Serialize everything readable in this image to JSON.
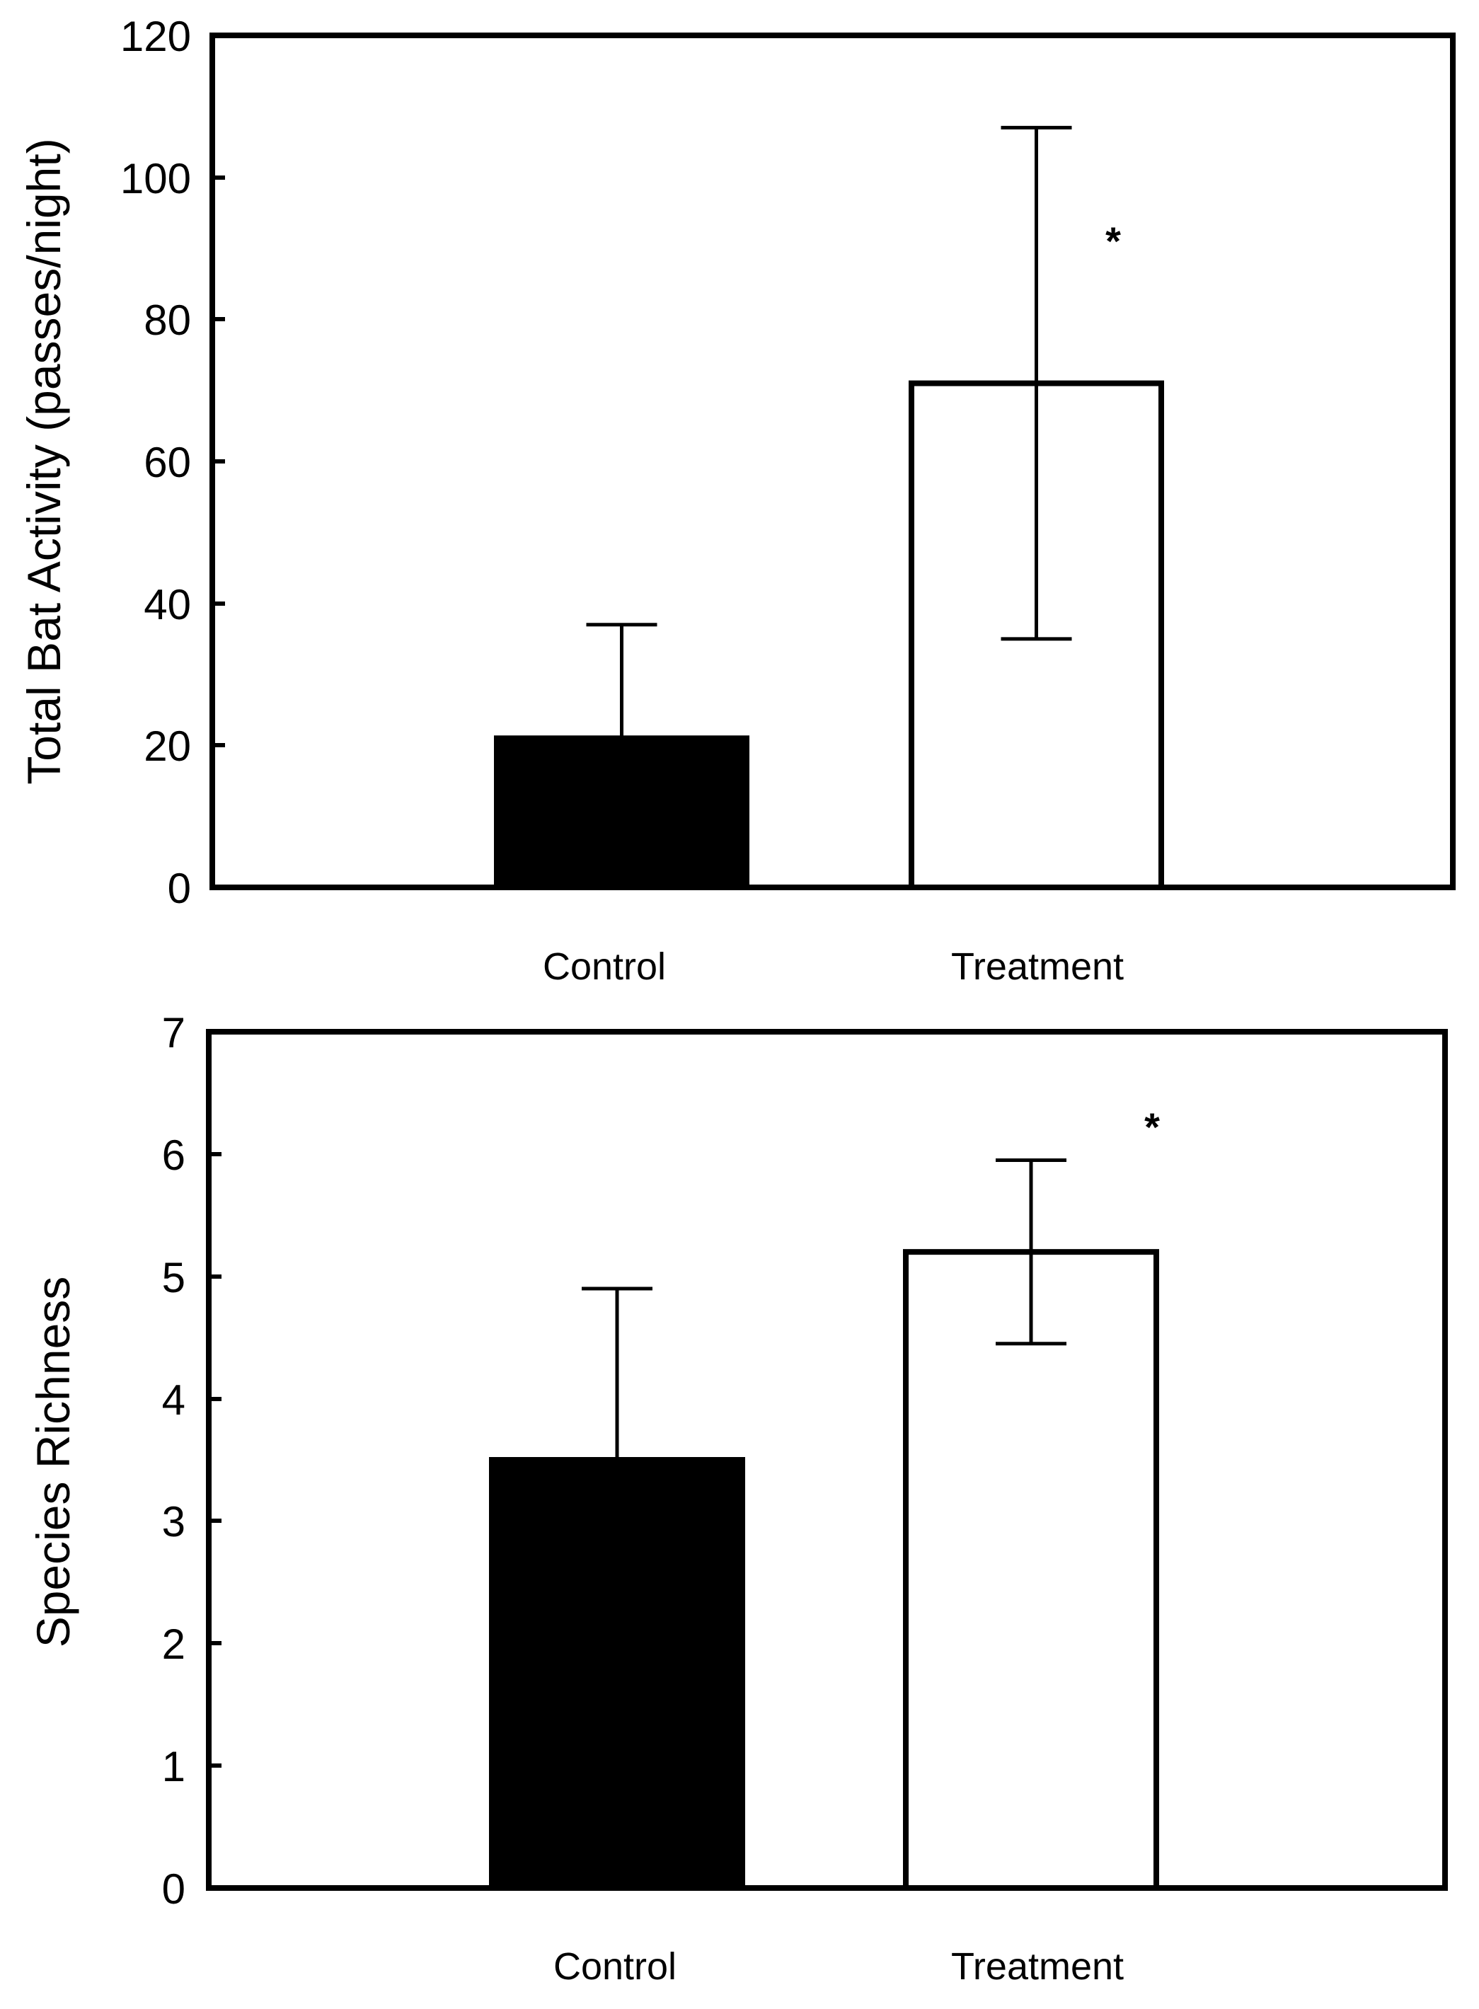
{
  "chart_data": [
    {
      "type": "bar",
      "title": "",
      "xlabel": "",
      "ylabel": "Total Bat Activity (passes/night)",
      "ylim": [
        0,
        120
      ],
      "yticks": [
        "0",
        "20",
        "40",
        "60",
        "80",
        "100",
        "120"
      ],
      "categories": [
        "Control",
        "Treatment"
      ],
      "values": [
        21,
        71
      ],
      "error_upper": [
        37,
        107
      ],
      "error_lower": [
        21,
        35
      ],
      "fills": [
        "#000000",
        "#ffffff"
      ],
      "significance": [
        "",
        "*"
      ]
    },
    {
      "type": "bar",
      "title": "",
      "xlabel": "",
      "ylabel": "Species Richness",
      "ylim": [
        0,
        7
      ],
      "yticks": [
        "0",
        "1",
        "2",
        "3",
        "4",
        "5",
        "6",
        "7"
      ],
      "categories": [
        "Control",
        "Treatment"
      ],
      "values": [
        3.5,
        5.2
      ],
      "error_upper": [
        4.9,
        5.95
      ],
      "error_lower": [
        3.5,
        4.45
      ],
      "fills": [
        "#000000",
        "#ffffff"
      ],
      "significance": [
        "",
        "*"
      ]
    }
  ]
}
